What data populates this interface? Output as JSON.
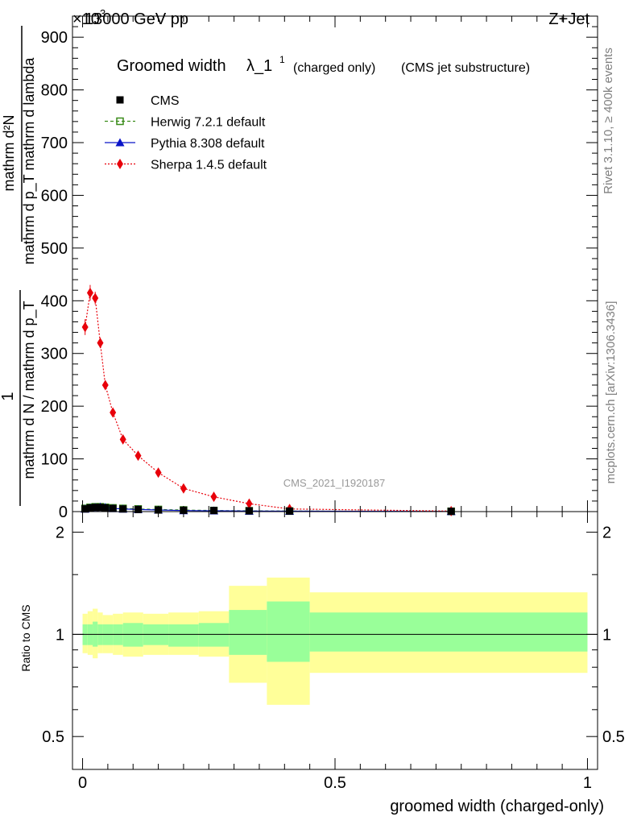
{
  "header": {
    "energy_label": "13000 GeV pp",
    "process_label": "Z+Jet",
    "exponent_label": "×10",
    "exponent_power": "3"
  },
  "side_labels": {
    "rivet": "Rivet 3.1.10, ≥ 400k events",
    "mcplots": "mcplots.cern.ch [arXiv:1306.3436]"
  },
  "watermark": "CMS_2021_I1920187",
  "chart_data": [
    {
      "type": "line",
      "panel": "main",
      "title": "Groomed width",
      "title_symbol": "λ_1",
      "title_superscript": "1",
      "title_note1": "(charged only)",
      "title_note2": "(CMS jet substructure)",
      "ylabel_parts": {
        "numerator": "1",
        "denominator": "mathrm d N / mathrm d p_T",
        "upper_right": "mathrm d²N",
        "lower_right": "mathrm d p_T mathrm d lambda"
      },
      "ylim": [
        0,
        940
      ],
      "y_ticks": [
        0,
        100,
        200,
        300,
        400,
        500,
        600,
        700,
        800,
        900
      ],
      "y_tick_labels": [
        "0",
        "100",
        "200",
        "300",
        "400",
        "500",
        "600",
        "700",
        "800",
        "900"
      ],
      "xlim": [
        -0.02,
        1.02
      ],
      "legend": {
        "position": "top-left",
        "entries": [
          {
            "key": "cms",
            "label": "CMS"
          },
          {
            "key": "herwig",
            "label": "Herwig 7.2.1 default"
          },
          {
            "key": "pythia",
            "label": "Pythia 8.308 default"
          },
          {
            "key": "sherpa",
            "label": "Sherpa 1.4.5 default"
          }
        ]
      },
      "series": [
        {
          "name": "CMS",
          "key": "cms",
          "color": "#000000",
          "marker": "square",
          "x": [
            0.005,
            0.015,
            0.025,
            0.035,
            0.045,
            0.06,
            0.08,
            0.11,
            0.15,
            0.2,
            0.26,
            0.33,
            0.41,
            0.73
          ],
          "values": [
            5,
            7,
            8,
            8,
            7,
            6,
            5,
            4,
            3,
            2.5,
            2,
            1.5,
            1,
            0.5
          ]
        },
        {
          "name": "Herwig 7.2.1 default",
          "key": "herwig",
          "color": "#3a8c1a",
          "marker": "open-square",
          "dash": "4,3",
          "x": [
            0.005,
            0.015,
            0.025,
            0.035,
            0.045,
            0.06,
            0.08,
            0.11,
            0.15,
            0.2,
            0.26,
            0.33,
            0.41,
            0.73
          ],
          "values": [
            6,
            8,
            9,
            9,
            8,
            7,
            6,
            5,
            4,
            3,
            2,
            1.5,
            1,
            0.5
          ]
        },
        {
          "name": "Pythia 8.308 default",
          "key": "pythia",
          "color": "#0a14c8",
          "marker": "triangle",
          "dash": "",
          "x": [
            0.005,
            0.015,
            0.025,
            0.035,
            0.045,
            0.06,
            0.08,
            0.11,
            0.15,
            0.2,
            0.26,
            0.33,
            0.41,
            0.73
          ],
          "values": [
            5,
            7,
            8,
            9,
            8,
            6,
            5,
            4,
            3,
            2,
            1.5,
            1,
            0.8,
            0.3
          ]
        },
        {
          "name": "Sherpa 1.4.5 default",
          "key": "sherpa",
          "color": "#e8000a",
          "marker": "diamond",
          "dash": "2,2",
          "x": [
            0.005,
            0.015,
            0.025,
            0.035,
            0.045,
            0.06,
            0.08,
            0.11,
            0.15,
            0.2,
            0.26,
            0.33,
            0.41,
            0.73
          ],
          "values": [
            350,
            415,
            405,
            320,
            240,
            188,
            137,
            106,
            74,
            44,
            28,
            15,
            5,
            1
          ],
          "errors": [
            15,
            15,
            12,
            10,
            8,
            6,
            5,
            4,
            3,
            2,
            2,
            1,
            1,
            0.5
          ]
        }
      ]
    },
    {
      "type": "area",
      "panel": "ratio",
      "ylabel": "Ratio to CMS",
      "ylim": [
        0.4,
        2.3
      ],
      "y_scale": "log",
      "y_ticks": [
        0.5,
        1,
        2
      ],
      "y_tick_labels": [
        "0.5",
        "1",
        "2"
      ],
      "xlabel": "groomed width (charged-only)",
      "xlim": [
        -0.02,
        1.02
      ],
      "x_ticks": [
        0,
        0.5,
        1
      ],
      "x_tick_labels": [
        "0",
        "0.5",
        "1"
      ],
      "reference_line": 1,
      "band_colors": {
        "outer": "#ffff99",
        "inner": "#99ff99"
      },
      "bins": [
        {
          "x_lo": 0.0,
          "x_hi": 0.01,
          "inner_lo": 0.93,
          "inner_hi": 1.07,
          "outer_lo": 0.88,
          "outer_hi": 1.15
        },
        {
          "x_lo": 0.01,
          "x_hi": 0.02,
          "inner_lo": 0.93,
          "inner_hi": 1.07,
          "outer_lo": 0.87,
          "outer_hi": 1.17
        },
        {
          "x_lo": 0.02,
          "x_hi": 0.03,
          "inner_lo": 0.92,
          "inner_hi": 1.09,
          "outer_lo": 0.85,
          "outer_hi": 1.19
        },
        {
          "x_lo": 0.03,
          "x_hi": 0.04,
          "inner_lo": 0.93,
          "inner_hi": 1.07,
          "outer_lo": 0.88,
          "outer_hi": 1.16
        },
        {
          "x_lo": 0.04,
          "x_hi": 0.06,
          "inner_lo": 0.93,
          "inner_hi": 1.07,
          "outer_lo": 0.88,
          "outer_hi": 1.14
        },
        {
          "x_lo": 0.06,
          "x_hi": 0.08,
          "inner_lo": 0.93,
          "inner_hi": 1.07,
          "outer_lo": 0.87,
          "outer_hi": 1.15
        },
        {
          "x_lo": 0.08,
          "x_hi": 0.12,
          "inner_lo": 0.92,
          "inner_hi": 1.08,
          "outer_lo": 0.86,
          "outer_hi": 1.16
        },
        {
          "x_lo": 0.12,
          "x_hi": 0.17,
          "inner_lo": 0.93,
          "inner_hi": 1.07,
          "outer_lo": 0.87,
          "outer_hi": 1.15
        },
        {
          "x_lo": 0.17,
          "x_hi": 0.23,
          "inner_lo": 0.92,
          "inner_hi": 1.07,
          "outer_lo": 0.87,
          "outer_hi": 1.16
        },
        {
          "x_lo": 0.23,
          "x_hi": 0.29,
          "inner_lo": 0.92,
          "inner_hi": 1.08,
          "outer_lo": 0.86,
          "outer_hi": 1.17
        },
        {
          "x_lo": 0.29,
          "x_hi": 0.365,
          "inner_lo": 0.87,
          "inner_hi": 1.18,
          "outer_lo": 0.72,
          "outer_hi": 1.39
        },
        {
          "x_lo": 0.365,
          "x_hi": 0.45,
          "inner_lo": 0.83,
          "inner_hi": 1.25,
          "outer_lo": 0.62,
          "outer_hi": 1.47
        },
        {
          "x_lo": 0.45,
          "x_hi": 1.0,
          "inner_lo": 0.89,
          "inner_hi": 1.16,
          "outer_lo": 0.77,
          "outer_hi": 1.33
        }
      ]
    }
  ]
}
